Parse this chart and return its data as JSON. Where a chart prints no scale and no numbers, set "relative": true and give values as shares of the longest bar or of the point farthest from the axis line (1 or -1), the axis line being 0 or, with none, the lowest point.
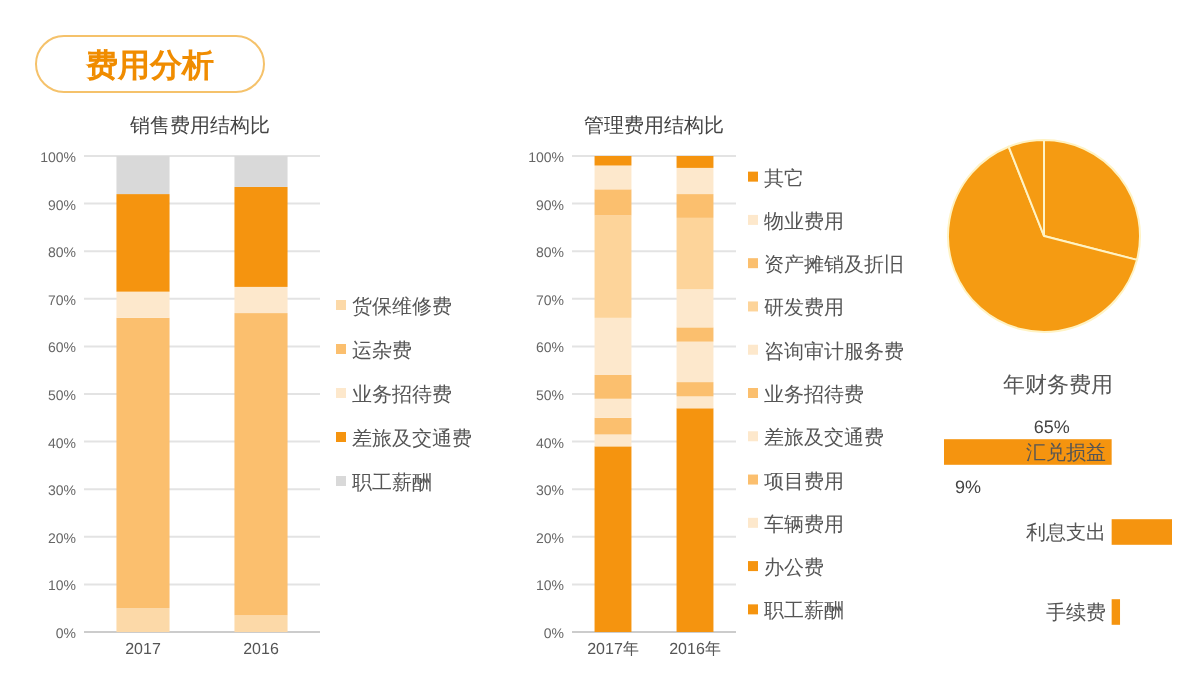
{
  "chart_data": [
    {
      "type": "other",
      "title": "费用分析"
    },
    {
      "type": "bar",
      "stacked": true,
      "title": "销售费用结构比",
      "categories": [
        "2017",
        "2016"
      ],
      "ylim": [
        0,
        100
      ],
      "yticks": [
        {
          "value": 0,
          "label": "0%"
        },
        {
          "value": 10,
          "label": "10%"
        },
        {
          "value": 20,
          "label": "20%"
        },
        {
          "value": 30,
          "label": "30%"
        },
        {
          "value": 40,
          "label": "40%"
        },
        {
          "value": 50,
          "label": "50%"
        },
        {
          "value": 60,
          "label": "60%"
        },
        {
          "value": 70,
          "label": "70%"
        },
        {
          "value": 80,
          "label": "80%"
        },
        {
          "value": 90,
          "label": "90%"
        },
        {
          "value": 100,
          "label": "100%"
        }
      ],
      "grid": "y",
      "legend": "right",
      "series": [
        {
          "name": "货保维修费",
          "color": "#fcd9a8",
          "values": [
            5,
            3.5
          ]
        },
        {
          "name": "运杂费",
          "color": "#fbbf6e",
          "values": [
            61,
            63.5
          ]
        },
        {
          "name": "业务招待费",
          "color": "#fde8cc",
          "values": [
            5.5,
            5.5
          ]
        },
        {
          "name": "差旅及交通费",
          "color": "#f5940f",
          "values": [
            20.5,
            21
          ]
        },
        {
          "name": "职工薪酬",
          "color": "#d9d9d9",
          "values": [
            8,
            6.5
          ]
        }
      ]
    },
    {
      "type": "bar",
      "stacked": true,
      "title": "管理费用结构比",
      "categories": [
        "2017年",
        "2016年"
      ],
      "ylim": [
        0,
        100
      ],
      "yticks": [
        {
          "value": 0,
          "label": "0%"
        },
        {
          "value": 10,
          "label": "10%"
        },
        {
          "value": 20,
          "label": "20%"
        },
        {
          "value": 30,
          "label": "30%"
        },
        {
          "value": 40,
          "label": "40%"
        },
        {
          "value": 50,
          "label": "50%"
        },
        {
          "value": 60,
          "label": "60%"
        },
        {
          "value": 70,
          "label": "70%"
        },
        {
          "value": 80,
          "label": "80%"
        },
        {
          "value": 90,
          "label": "90%"
        },
        {
          "value": 100,
          "label": "100%"
        }
      ],
      "grid": "y",
      "legend": "right",
      "series": [
        {
          "name": "职工薪酬",
          "color": "#f5940f",
          "values": [
            39,
            47
          ]
        },
        {
          "name": "办公费",
          "color": "#f5940f",
          "values": [
            0,
            0
          ]
        },
        {
          "name": "车辆费用",
          "color": "#fde8cc",
          "values": [
            2.5,
            2.5
          ]
        },
        {
          "name": "项目费用",
          "color": "#fbbf6e",
          "values": [
            3.5,
            3
          ]
        },
        {
          "name": "差旅及交通费",
          "color": "#fde8cc",
          "values": [
            4,
            8.5
          ]
        },
        {
          "name": "业务招待费",
          "color": "#fbbf6e",
          "values": [
            5,
            3
          ]
        },
        {
          "name": "咨询审计服务费",
          "color": "#fde8cc",
          "values": [
            12,
            8
          ]
        },
        {
          "name": "研发费用",
          "color": "#fdd49a",
          "values": [
            21.5,
            15
          ]
        },
        {
          "name": "资产摊销及折旧",
          "color": "#fbbf6e",
          "values": [
            5.5,
            5
          ]
        },
        {
          "name": "物业费用",
          "color": "#fde8cc",
          "values": [
            5,
            5.5
          ]
        },
        {
          "name": "其它",
          "color": "#f5940f",
          "values": [
            2,
            2.5
          ]
        }
      ]
    },
    {
      "type": "pie",
      "categories": [
        null,
        null,
        null
      ],
      "values": [
        29,
        65,
        6
      ],
      "colors": [
        "#f59b12",
        "#f59b12",
        "#f59b12"
      ]
    },
    {
      "type": "bar",
      "orientation": "horizontal",
      "relative": true,
      "title": "年财务费用",
      "categories": [
        "汇兑损益",
        "利息支出",
        "手续费"
      ],
      "values": [
        -1,
        0.36,
        0.05
      ],
      "color": "#f5940f",
      "annotations": [
        "65%",
        "9%"
      ]
    }
  ]
}
